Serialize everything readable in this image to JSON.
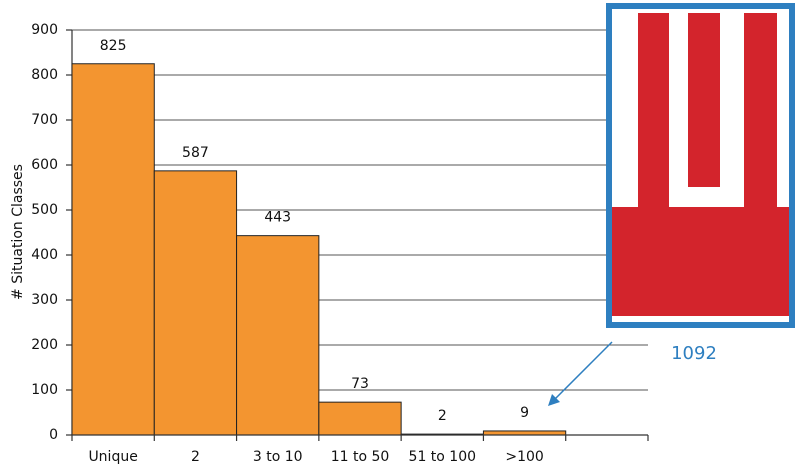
{
  "chart_data": {
    "type": "bar",
    "y_label": "# Situation Classes",
    "categories": [
      "Unique",
      "2",
      "3 to 10",
      "11 to 50",
      "51 to 100",
      ">100",
      null
    ],
    "values": [
      825,
      587,
      443,
      73,
      2,
      9,
      null
    ],
    "color": "#f39530",
    "ylim": [
      0,
      900
    ],
    "yticks": [
      0,
      100,
      200,
      300,
      400,
      500,
      600,
      700,
      800,
      900
    ],
    "grid": true,
    "annotation": "1092",
    "annotation_color": "#2e7fc0"
  }
}
